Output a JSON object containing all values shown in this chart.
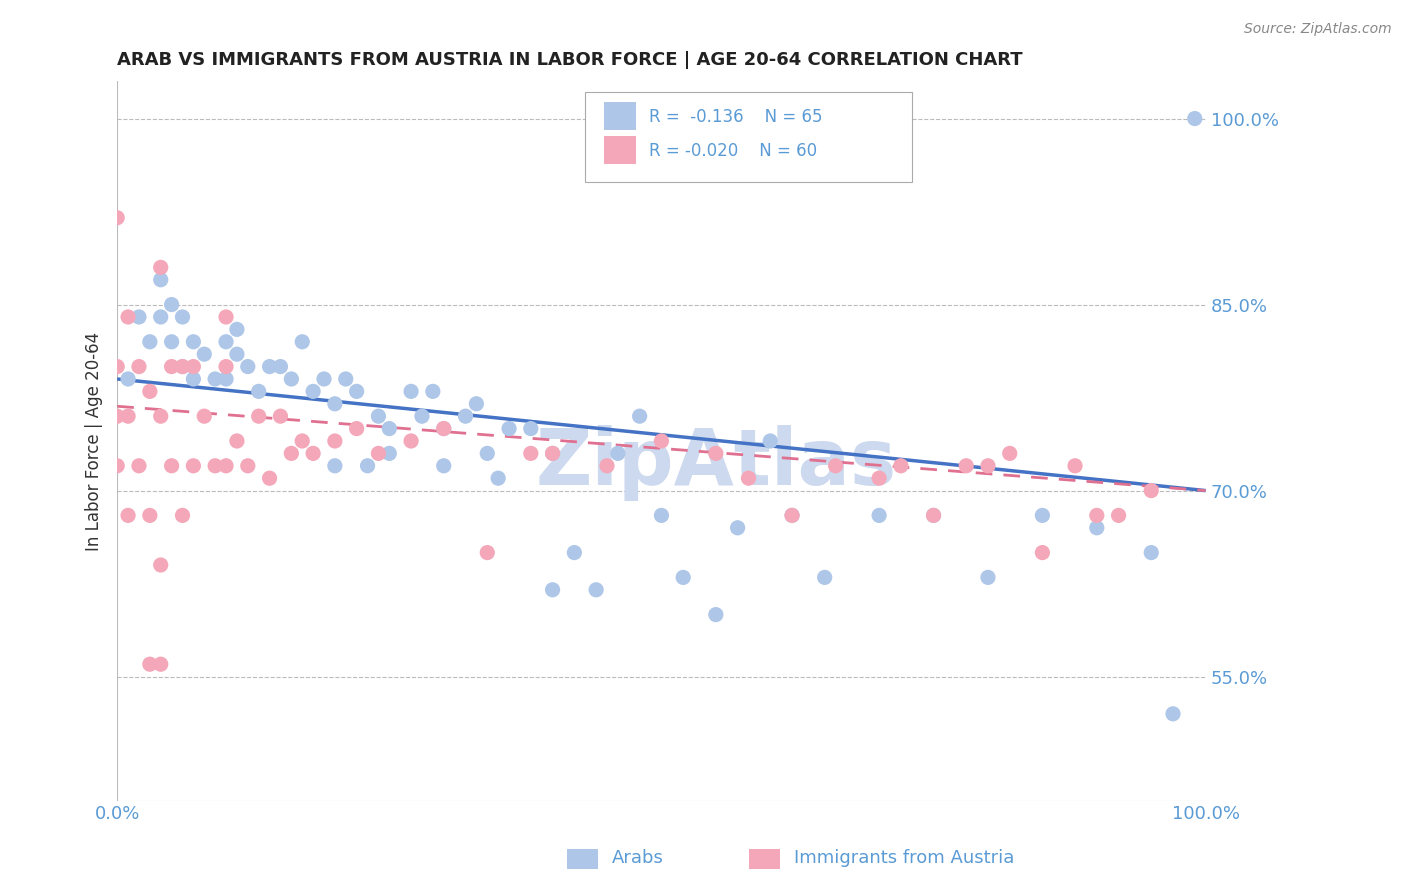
{
  "title": "ARAB VS IMMIGRANTS FROM AUSTRIA IN LABOR FORCE | AGE 20-64 CORRELATION CHART",
  "source": "Source: ZipAtlas.com",
  "ylabel": "In Labor Force | Age 20-64",
  "watermark": "ZipAtlas",
  "legend_arab": {
    "R": "-0.136",
    "N": "65"
  },
  "legend_austria": {
    "R": "-0.020",
    "N": "60"
  },
  "xlim": [
    0.0,
    1.0
  ],
  "ylim": [
    0.45,
    1.03
  ],
  "yticks": [
    0.55,
    0.7,
    0.85,
    1.0
  ],
  "ytick_labels": [
    "55.0%",
    "70.0%",
    "85.0%",
    "100.0%"
  ],
  "xticks": [
    0.0,
    0.25,
    0.5,
    0.75,
    1.0
  ],
  "xtick_labels": [
    "0.0%",
    "",
    "",
    "",
    "100.0%"
  ],
  "title_color": "#222222",
  "tick_color": "#5b9bd5",
  "grid_color": "#bbbbbb",
  "arab_color": "#aec6e8",
  "austria_color": "#f4a7b9",
  "arab_line_color": "#4472c4",
  "austria_line_color": "#e07090",
  "watermark_color": "#ccd9ee",
  "arab_scatter_x": [
    0.01,
    0.02,
    0.03,
    0.04,
    0.04,
    0.05,
    0.05,
    0.06,
    0.06,
    0.07,
    0.07,
    0.08,
    0.09,
    0.1,
    0.1,
    0.11,
    0.11,
    0.12,
    0.13,
    0.14,
    0.15,
    0.16,
    0.17,
    0.18,
    0.19,
    0.2,
    0.21,
    0.22,
    0.23,
    0.24,
    0.25,
    0.27,
    0.28,
    0.29,
    0.3,
    0.32,
    0.33,
    0.34,
    0.35,
    0.36,
    0.38,
    0.4,
    0.42,
    0.44,
    0.46,
    0.48,
    0.5,
    0.52,
    0.55,
    0.57,
    0.6,
    0.62,
    0.65,
    0.7,
    0.75,
    0.8,
    0.85,
    0.9,
    0.95,
    0.97,
    0.99,
    0.4,
    0.3,
    0.25,
    0.2
  ],
  "arab_scatter_y": [
    0.79,
    0.84,
    0.82,
    0.84,
    0.87,
    0.82,
    0.85,
    0.8,
    0.84,
    0.82,
    0.79,
    0.81,
    0.79,
    0.82,
    0.79,
    0.81,
    0.83,
    0.8,
    0.78,
    0.8,
    0.8,
    0.79,
    0.82,
    0.78,
    0.79,
    0.77,
    0.79,
    0.78,
    0.72,
    0.76,
    0.75,
    0.78,
    0.76,
    0.78,
    0.72,
    0.76,
    0.77,
    0.73,
    0.71,
    0.75,
    0.75,
    0.62,
    0.65,
    0.62,
    0.73,
    0.76,
    0.68,
    0.63,
    0.6,
    0.67,
    0.74,
    0.68,
    0.63,
    0.68,
    0.68,
    0.63,
    0.68,
    0.67,
    0.65,
    0.52,
    1.0,
    0.73,
    0.75,
    0.73,
    0.72
  ],
  "austria_scatter_x": [
    0.0,
    0.0,
    0.0,
    0.0,
    0.01,
    0.01,
    0.01,
    0.02,
    0.02,
    0.03,
    0.03,
    0.04,
    0.04,
    0.04,
    0.05,
    0.05,
    0.06,
    0.06,
    0.07,
    0.07,
    0.08,
    0.09,
    0.1,
    0.1,
    0.1,
    0.11,
    0.12,
    0.13,
    0.14,
    0.15,
    0.16,
    0.17,
    0.18,
    0.2,
    0.22,
    0.24,
    0.27,
    0.3,
    0.34,
    0.38,
    0.4,
    0.45,
    0.5,
    0.55,
    0.58,
    0.62,
    0.66,
    0.7,
    0.72,
    0.75,
    0.78,
    0.8,
    0.82,
    0.85,
    0.88,
    0.9,
    0.92,
    0.95,
    0.03,
    0.04
  ],
  "austria_scatter_y": [
    0.72,
    0.76,
    0.8,
    0.92,
    0.68,
    0.76,
    0.84,
    0.72,
    0.8,
    0.68,
    0.78,
    0.64,
    0.76,
    0.88,
    0.72,
    0.8,
    0.68,
    0.8,
    0.72,
    0.8,
    0.76,
    0.72,
    0.72,
    0.8,
    0.84,
    0.74,
    0.72,
    0.76,
    0.71,
    0.76,
    0.73,
    0.74,
    0.73,
    0.74,
    0.75,
    0.73,
    0.74,
    0.75,
    0.65,
    0.73,
    0.73,
    0.72,
    0.74,
    0.73,
    0.71,
    0.68,
    0.72,
    0.71,
    0.72,
    0.68,
    0.72,
    0.72,
    0.73,
    0.65,
    0.72,
    0.68,
    0.68,
    0.7,
    0.56,
    0.56
  ],
  "arab_trend_x": [
    0.0,
    1.0
  ],
  "arab_trend_y": [
    0.79,
    0.7
  ],
  "austria_trend_x": [
    0.0,
    1.0
  ],
  "austria_trend_y": [
    0.768,
    0.7
  ]
}
